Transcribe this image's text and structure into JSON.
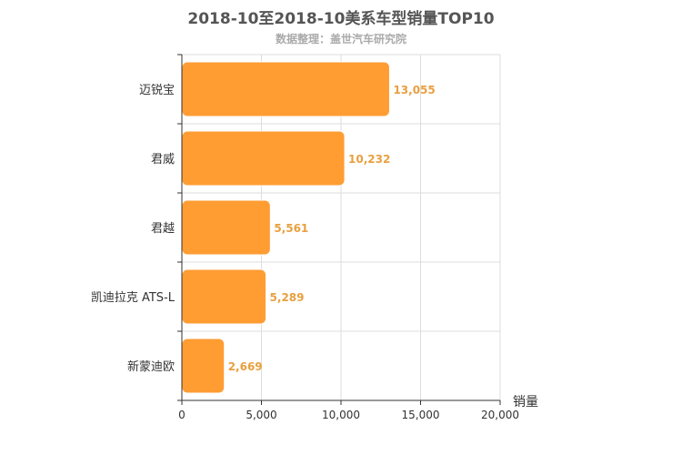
{
  "chart_data": {
    "type": "bar",
    "orientation": "horizontal",
    "title": "2018-10至2018-10美系车型销量TOP10",
    "subtitle": "数据整理：盖世汽车研究院",
    "categories": [
      "迈锐宝",
      "君威",
      "君越",
      "凯迪拉克 ATS-L",
      "新蒙迪欧"
    ],
    "values": [
      13055,
      10232,
      5561,
      5289,
      2669
    ],
    "value_labels": [
      "13,055",
      "10,232",
      "5,561",
      "5,289",
      "2,669"
    ],
    "xlabel": "销量",
    "xlim": [
      0,
      20000
    ],
    "xticks": [
      0,
      5000,
      10000,
      15000,
      20000
    ],
    "xtick_labels": [
      "0",
      "5,000",
      "10,000",
      "15,000",
      "20,000"
    ],
    "bar_color": "#ff9d33",
    "label_color": "#e8a040",
    "grid": true
  }
}
